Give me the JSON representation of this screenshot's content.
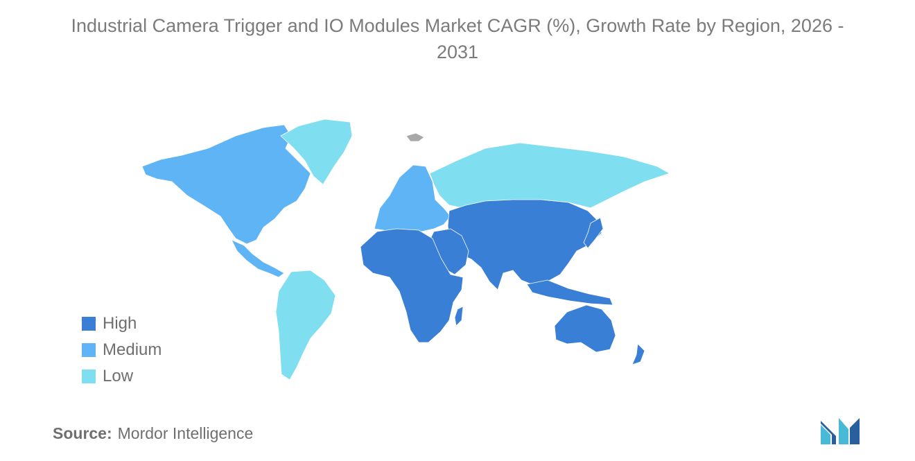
{
  "title": {
    "line1": "Industrial Camera Trigger and IO Modules Market CAGR (%), Growth Rate by Region, 2026 -",
    "line2": "2031"
  },
  "legend": {
    "items": [
      {
        "label": "High",
        "color": "#3a7fd6"
      },
      {
        "label": "Medium",
        "color": "#5fb4f5"
      },
      {
        "label": "Low",
        "color": "#7fdff0"
      }
    ]
  },
  "source": {
    "key": "Source:",
    "value": "Mordor Intelligence"
  },
  "map": {
    "regions": [
      {
        "name": "North America",
        "level": "Medium"
      },
      {
        "name": "Europe",
        "level": "Medium"
      },
      {
        "name": "Greenland",
        "level": "Low"
      },
      {
        "name": "Russia",
        "level": "Low"
      },
      {
        "name": "South America",
        "level": "Low"
      },
      {
        "name": "Asia",
        "level": "High"
      },
      {
        "name": "Middle East",
        "level": "High"
      },
      {
        "name": "Africa",
        "level": "High"
      },
      {
        "name": "Australia",
        "level": "High"
      }
    ],
    "no_data_color": "#a8a8a8"
  }
}
